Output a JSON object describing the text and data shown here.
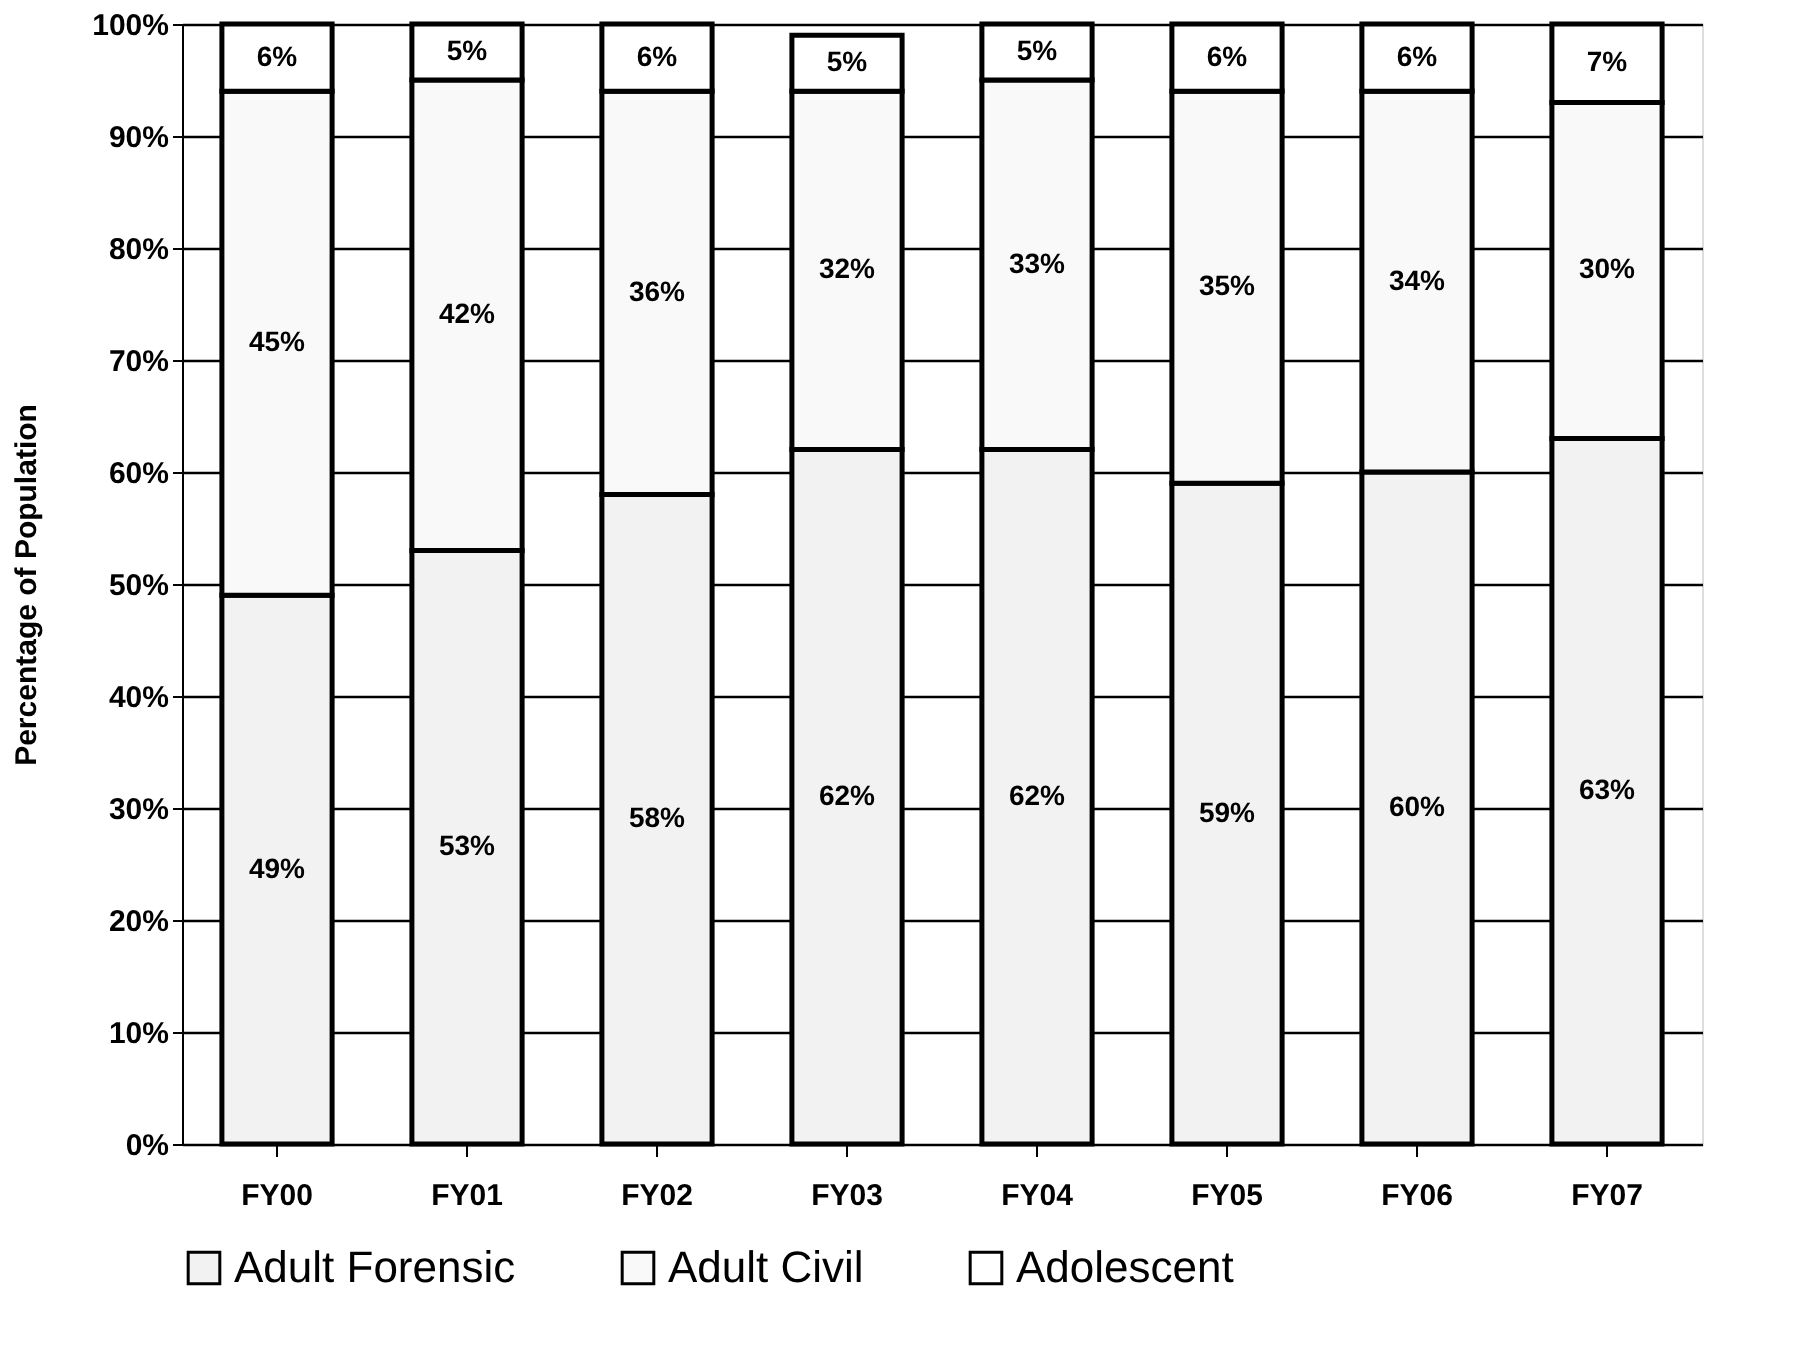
{
  "chart_data": {
    "type": "bar",
    "stacked": true,
    "ylabel": "Percentage of Population",
    "categories": [
      "FY00",
      "FY01",
      "FY02",
      "FY03",
      "FY04",
      "FY05",
      "FY06",
      "FY07"
    ],
    "series": [
      {
        "name": "Adult Forensic",
        "color": "#f2f2f2",
        "values": [
          49,
          53,
          58,
          62,
          62,
          59,
          60,
          63
        ],
        "value_labels": [
          "49%",
          "53%",
          "58%",
          "62%",
          "62%",
          "59%",
          "60%",
          "63%"
        ]
      },
      {
        "name": "Adult Civil",
        "color": "#f9f9f9",
        "values": [
          45,
          42,
          36,
          32,
          33,
          35,
          34,
          30
        ],
        "value_labels": [
          "45%",
          "42%",
          "36%",
          "32%",
          "33%",
          "35%",
          "34%",
          "30%"
        ]
      },
      {
        "name": "Adolescent",
        "color": "#ffffff",
        "values": [
          6,
          5,
          6,
          5,
          5,
          6,
          6,
          7
        ],
        "value_labels": [
          "6%",
          "5%",
          "6%",
          "5%",
          "5%",
          "6%",
          "6%",
          "7%"
        ]
      }
    ],
    "ylim": [
      0,
      100
    ],
    "yticks": [
      {
        "value": 0,
        "label": "0%"
      },
      {
        "value": 10,
        "label": "10%"
      },
      {
        "value": 20,
        "label": "20%"
      },
      {
        "value": 30,
        "label": "30%"
      },
      {
        "value": 40,
        "label": "40%"
      },
      {
        "value": 50,
        "label": "50%"
      },
      {
        "value": 60,
        "label": "60%"
      },
      {
        "value": 70,
        "label": "70%"
      },
      {
        "value": 80,
        "label": "80%"
      },
      {
        "value": 90,
        "label": "90%"
      },
      {
        "value": 100,
        "label": "100%"
      }
    ],
    "grid": "y",
    "legend": "bottom"
  }
}
